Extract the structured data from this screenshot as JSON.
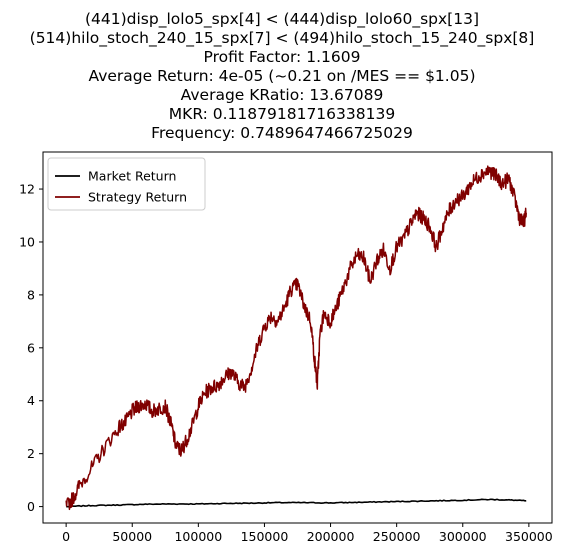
{
  "chart_data": {
    "type": "line",
    "title_lines": [
      "(441)disp_lolo5_spx[4] < (444)disp_lolo60_spx[13]",
      "(514)hilo_stoch_240_15_spx[7] < (494)hilo_stoch_15_240_spx[8]",
      "Profit Factor: 1.1609",
      "Average Return: 4e-05 (~0.21 on /MES == $1.05)",
      "Average KRatio: 13.67089",
      "MKR: 0.11879181716338139",
      "Frequency: 0.7489647466725029"
    ],
    "xlabel": "",
    "ylabel": "",
    "xlim": [
      -17500,
      367500
    ],
    "ylim": [
      -0.62,
      13.4
    ],
    "x_ticks": [
      0,
      50000,
      100000,
      150000,
      200000,
      250000,
      300000,
      350000
    ],
    "y_ticks": [
      0,
      2,
      4,
      6,
      8,
      10,
      12
    ],
    "legend": {
      "position": "top-left",
      "entries": [
        "Market Return",
        "Strategy Return"
      ]
    },
    "series": [
      {
        "name": "Market Return",
        "color": "#000000",
        "x": [
          0,
          20000,
          40000,
          60000,
          80000,
          100000,
          120000,
          140000,
          160000,
          180000,
          200000,
          220000,
          240000,
          260000,
          280000,
          300000,
          320000,
          335000,
          348000
        ],
        "y": [
          0.0,
          0.04,
          0.06,
          0.09,
          0.1,
          0.1,
          0.12,
          0.13,
          0.15,
          0.15,
          0.14,
          0.16,
          0.18,
          0.2,
          0.22,
          0.24,
          0.27,
          0.25,
          0.22
        ]
      },
      {
        "name": "Strategy Return",
        "color": "#800000",
        "x": [
          0,
          5000,
          10000,
          20000,
          30000,
          40000,
          45000,
          50000,
          55000,
          60000,
          65000,
          70000,
          75000,
          80000,
          83000,
          87000,
          90000,
          95000,
          100000,
          105000,
          110000,
          115000,
          120000,
          125000,
          130000,
          135000,
          140000,
          145000,
          150000,
          155000,
          160000,
          165000,
          170000,
          175000,
          180000,
          185000,
          188000,
          190000,
          192000,
          195000,
          200000,
          205000,
          210000,
          215000,
          220000,
          225000,
          230000,
          235000,
          240000,
          245000,
          250000,
          255000,
          260000,
          265000,
          270000,
          275000,
          280000,
          285000,
          290000,
          295000,
          300000,
          305000,
          310000,
          315000,
          320000,
          325000,
          330000,
          335000,
          340000,
          343000,
          346000,
          348000
        ],
        "y": [
          0.0,
          0.3,
          0.8,
          1.5,
          2.3,
          3.0,
          3.2,
          3.6,
          3.8,
          3.9,
          3.6,
          3.7,
          3.8,
          3.0,
          2.3,
          2.1,
          2.4,
          3.0,
          3.8,
          4.3,
          4.5,
          4.6,
          4.9,
          5.1,
          4.7,
          4.5,
          5.2,
          6.1,
          6.8,
          7.2,
          7.0,
          7.5,
          8.2,
          8.4,
          7.6,
          7.0,
          5.5,
          4.6,
          6.5,
          7.3,
          7.0,
          7.6,
          8.3,
          9.0,
          9.5,
          9.4,
          8.5,
          9.3,
          9.7,
          9.0,
          9.8,
          10.1,
          10.6,
          11.1,
          10.9,
          10.6,
          9.8,
          10.6,
          11.2,
          11.6,
          11.7,
          12.1,
          12.4,
          12.6,
          12.7,
          12.5,
          12.2,
          12.4,
          11.5,
          10.9,
          10.7,
          11.1
        ]
      }
    ]
  }
}
